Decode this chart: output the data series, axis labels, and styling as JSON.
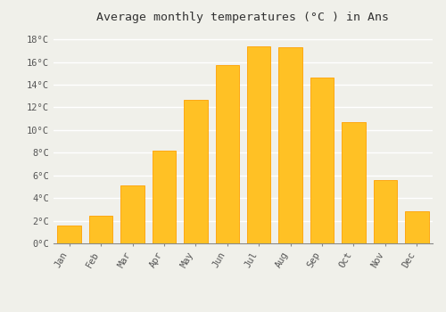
{
  "title": "Average monthly temperatures (°C ) in Ans",
  "months": [
    "Jan",
    "Feb",
    "Mar",
    "Apr",
    "May",
    "Jun",
    "Jul",
    "Aug",
    "Sep",
    "Oct",
    "Nov",
    "Dec"
  ],
  "values": [
    1.6,
    2.4,
    5.1,
    8.2,
    12.7,
    15.7,
    17.4,
    17.3,
    14.6,
    10.7,
    5.6,
    2.8
  ],
  "bar_color": "#FFC125",
  "bar_edge_color": "#FFA000",
  "background_color": "#F0F0EA",
  "grid_color": "#FFFFFF",
  "ylim": [
    0,
    19
  ],
  "yticks": [
    0,
    2,
    4,
    6,
    8,
    10,
    12,
    14,
    16,
    18
  ],
  "title_fontsize": 9.5,
  "tick_fontsize": 7.5,
  "title_color": "#333333",
  "tick_color": "#555555",
  "font_family": "monospace"
}
